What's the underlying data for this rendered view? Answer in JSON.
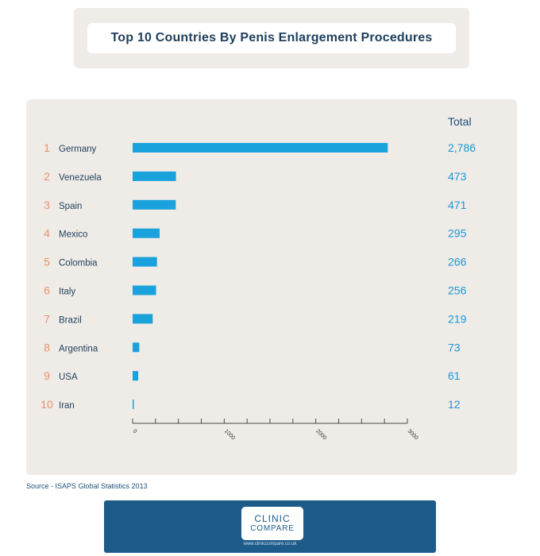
{
  "header": {
    "title": "Top 10 Countries By Penis Enlargement Procedures"
  },
  "chart_data": {
    "type": "bar",
    "orientation": "horizontal",
    "ranks": [
      "1",
      "2",
      "3",
      "4",
      "5",
      "6",
      "7",
      "8",
      "9",
      "10"
    ],
    "categories": [
      "Germany",
      "Venezuela",
      "Spain",
      "Mexico",
      "Colombia",
      "Italy",
      "Brazil",
      "Argentina",
      "USA",
      "Iran"
    ],
    "values": [
      2786,
      473,
      471,
      295,
      266,
      256,
      219,
      73,
      61,
      12
    ],
    "value_labels": [
      "2,786",
      "473",
      "471",
      "295",
      "266",
      "256",
      "219",
      "73",
      "61",
      "12"
    ],
    "column_header": "Total",
    "xlim": [
      0,
      3000
    ],
    "x_ticks": [
      0,
      1000,
      2000,
      3000
    ],
    "x_tick_labels": [
      "0",
      "1000",
      "2000",
      "3000"
    ],
    "colors": {
      "bar": "#1aa2dc",
      "rank": "#e8906b",
      "value": "#1a98d5",
      "label": "#1e3f5c",
      "axis": "#4a4a4a"
    }
  },
  "source": "Source - ISAPS Global Statistics 2013",
  "footer": {
    "logo_line1": "CLINIC",
    "logo_line2": "COMPARE",
    "url": "www.cliniccompare.co.uk"
  }
}
